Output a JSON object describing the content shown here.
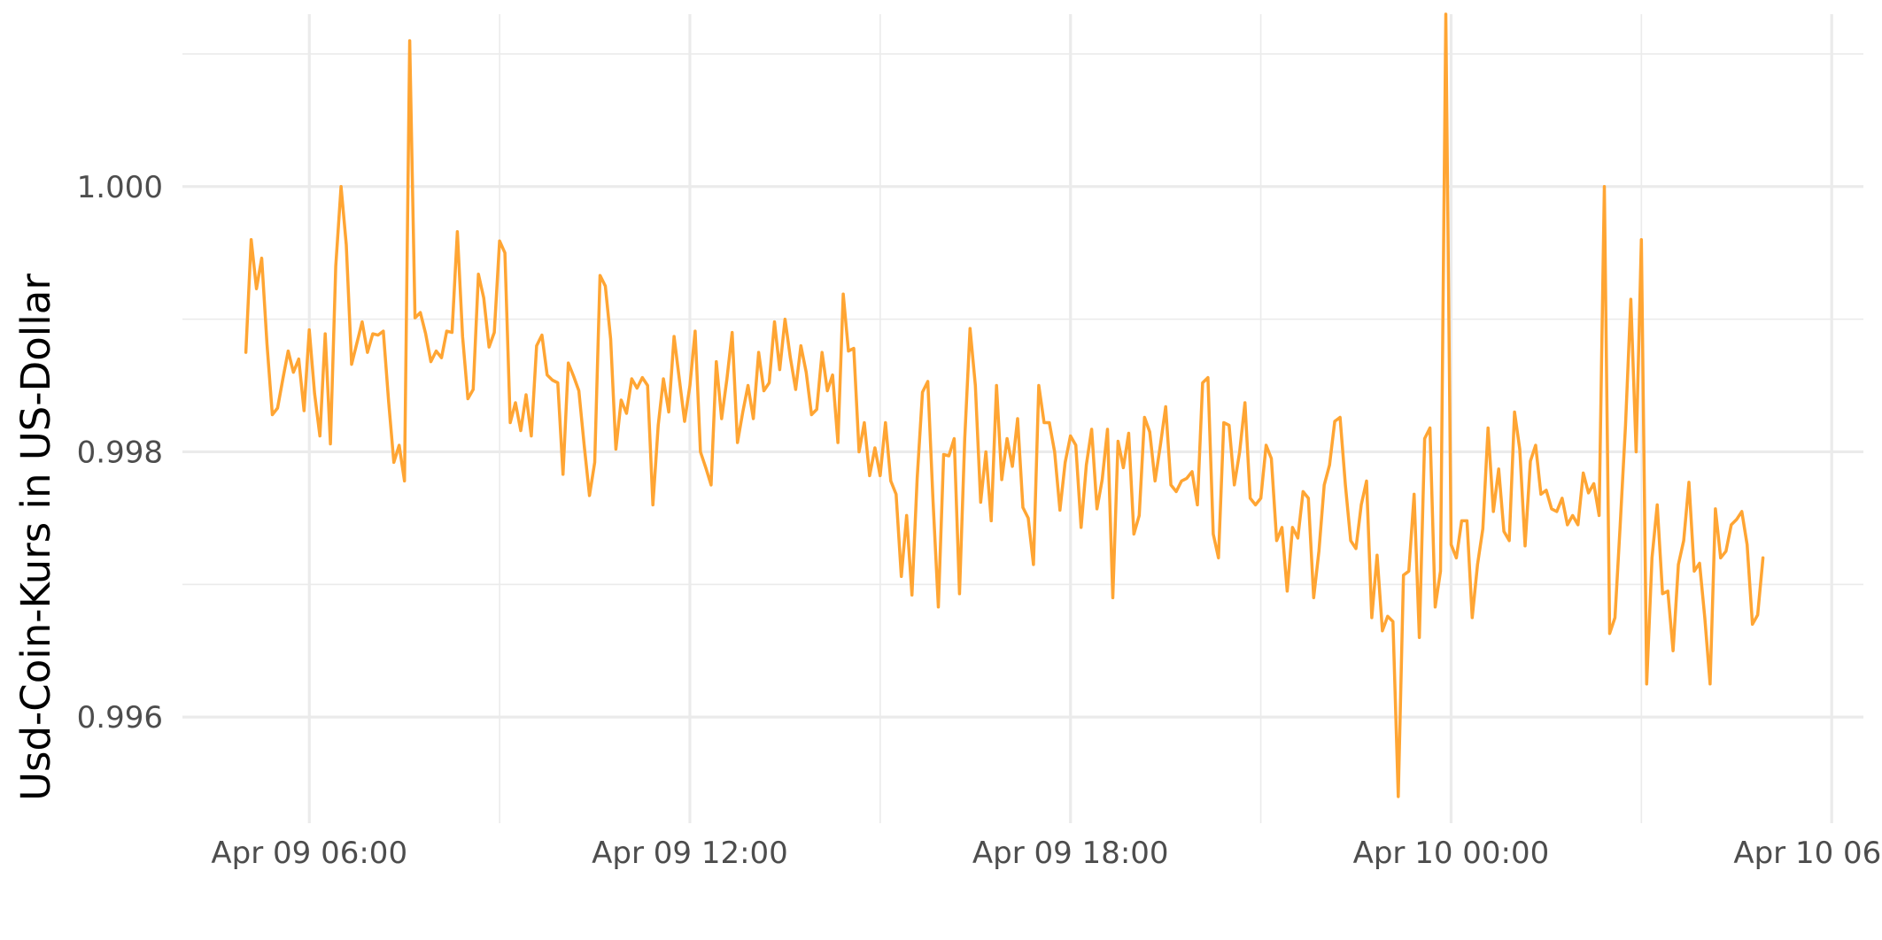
{
  "chart_data": {
    "type": "line",
    "title": "",
    "xlabel": "",
    "ylabel": "Usd-Coin-Kurs in US-Dollar",
    "x_unit": "datetime",
    "x_start": "2022-04-09T05:00",
    "x_step_minutes": 5,
    "xlim": [
      "2022-04-09T04:00",
      "2022-04-10T06:30"
    ],
    "ylim": [
      0.9952,
      1.0013
    ],
    "x_ticks": [
      {
        "at": "2022-04-09T06:00",
        "label": "Apr 09 06:00"
      },
      {
        "at": "2022-04-09T12:00",
        "label": "Apr 09 12:00"
      },
      {
        "at": "2022-04-09T18:00",
        "label": "Apr 09 18:00"
      },
      {
        "at": "2022-04-10T00:00",
        "label": "Apr 10 00:00"
      },
      {
        "at": "2022-04-10T06:00",
        "label": "Apr 10 06:00"
      }
    ],
    "x_minor_ticks": [
      "2022-04-09T09:00",
      "2022-04-09T15:00",
      "2022-04-09T21:00",
      "2022-04-10T03:00"
    ],
    "y_ticks": [
      {
        "value": 0.996,
        "label": "0.996"
      },
      {
        "value": 0.998,
        "label": "0.998"
      },
      {
        "value": 1.0,
        "label": "1.000"
      }
    ],
    "y_minor_ticks": [
      0.997,
      0.999,
      1.001
    ],
    "grid": true,
    "legend": "none",
    "series": [
      {
        "color": "#ffa533",
        "values": [
          0.99875,
          0.9996,
          0.99923,
          0.99946,
          0.99881,
          0.99828,
          0.99833,
          0.99855,
          0.99876,
          0.9986,
          0.9987,
          0.99831,
          0.99892,
          0.99844,
          0.99812,
          0.99889,
          0.99806,
          0.9994,
          1.0,
          0.99956,
          0.99866,
          0.99882,
          0.99898,
          0.99875,
          0.99889,
          0.99888,
          0.99891,
          0.99838,
          0.99792,
          0.99805,
          0.99778,
          1.0011,
          0.99901,
          0.99905,
          0.99889,
          0.99868,
          0.99876,
          0.99871,
          0.99891,
          0.9989,
          0.99966,
          0.99887,
          0.9984,
          0.99847,
          0.99934,
          0.99916,
          0.99879,
          0.9989,
          0.99959,
          0.9995,
          0.99822,
          0.99837,
          0.99816,
          0.99843,
          0.99812,
          0.9988,
          0.99888,
          0.99858,
          0.99854,
          0.99852,
          0.99783,
          0.99867,
          0.99857,
          0.99846,
          0.99805,
          0.99767,
          0.99792,
          0.99933,
          0.99925,
          0.99885,
          0.99802,
          0.99839,
          0.99829,
          0.99855,
          0.99848,
          0.99856,
          0.9985,
          0.9976,
          0.9982,
          0.99855,
          0.9983,
          0.99887,
          0.99855,
          0.99823,
          0.9985,
          0.99891,
          0.998,
          0.99788,
          0.99775,
          0.99868,
          0.99825,
          0.99855,
          0.9989,
          0.99807,
          0.9983,
          0.9985,
          0.99825,
          0.99875,
          0.99846,
          0.99852,
          0.99898,
          0.99862,
          0.999,
          0.99871,
          0.99847,
          0.9988,
          0.9986,
          0.99828,
          0.99832,
          0.99875,
          0.99846,
          0.99858,
          0.99807,
          0.99919,
          0.99876,
          0.99878,
          0.998,
          0.99822,
          0.99782,
          0.99803,
          0.99782,
          0.99822,
          0.99778,
          0.99768,
          0.99706,
          0.99752,
          0.99692,
          0.9978,
          0.99845,
          0.99853,
          0.99763,
          0.99683,
          0.99798,
          0.99797,
          0.9981,
          0.99693,
          0.9981,
          0.99893,
          0.9985,
          0.99762,
          0.998,
          0.99748,
          0.9985,
          0.99779,
          0.9981,
          0.99789,
          0.99825,
          0.99758,
          0.9975,
          0.99715,
          0.9985,
          0.99822,
          0.99822,
          0.998,
          0.99756,
          0.99792,
          0.99812,
          0.99805,
          0.99743,
          0.9979,
          0.99817,
          0.99757,
          0.99779,
          0.99817,
          0.9969,
          0.99808,
          0.99788,
          0.99814,
          0.99738,
          0.99752,
          0.99826,
          0.99815,
          0.99778,
          0.99805,
          0.99834,
          0.99775,
          0.9977,
          0.99778,
          0.9978,
          0.99785,
          0.9976,
          0.99852,
          0.99856,
          0.99738,
          0.9972,
          0.99822,
          0.9982,
          0.99775,
          0.998,
          0.99837,
          0.99765,
          0.9976,
          0.99765,
          0.99805,
          0.99795,
          0.99733,
          0.99743,
          0.99695,
          0.99743,
          0.99735,
          0.9977,
          0.99765,
          0.9969,
          0.99725,
          0.99775,
          0.9979,
          0.99823,
          0.99826,
          0.99775,
          0.99733,
          0.99727,
          0.9976,
          0.99778,
          0.99675,
          0.99722,
          0.99665,
          0.99676,
          0.99672,
          0.9954,
          0.99707,
          0.9971,
          0.99768,
          0.9966,
          0.9981,
          0.99818,
          0.99683,
          0.9971,
          1.0013,
          0.9973,
          0.9972,
          0.99748,
          0.99748,
          0.99675,
          0.99715,
          0.99742,
          0.99818,
          0.99755,
          0.99787,
          0.9974,
          0.99733,
          0.9983,
          0.99802,
          0.99729,
          0.99793,
          0.99805,
          0.99768,
          0.99771,
          0.99757,
          0.99755,
          0.99765,
          0.99745,
          0.99752,
          0.99745,
          0.99784,
          0.99769,
          0.99776,
          0.99752,
          1.0,
          0.99663,
          0.99675,
          0.99745,
          0.9982,
          0.99915,
          0.998,
          0.9996,
          0.99625,
          0.9972,
          0.9976,
          0.99693,
          0.99695,
          0.9965,
          0.99715,
          0.99733,
          0.99777,
          0.9971,
          0.99716,
          0.99675,
          0.99625,
          0.99757,
          0.9972,
          0.99725,
          0.99745,
          0.99749,
          0.99755,
          0.9973,
          0.9967,
          0.99677,
          0.9972
        ]
      }
    ]
  }
}
